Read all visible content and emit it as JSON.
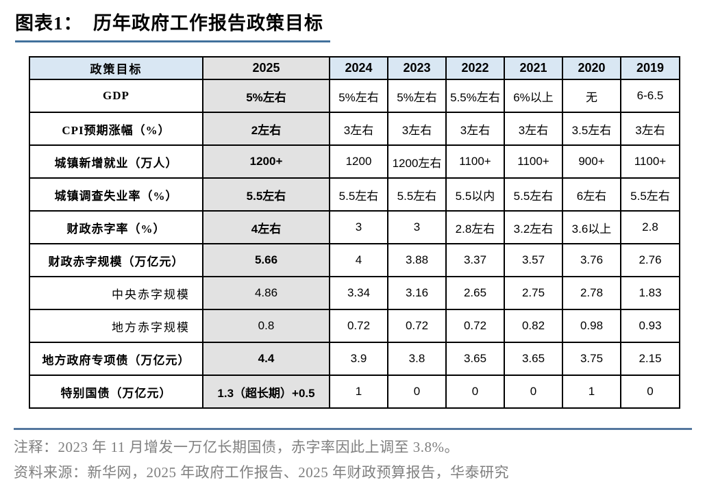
{
  "title": "图表1：  历年政府工作报告政策目标",
  "colors": {
    "header_bg": "#d9e7f3",
    "highlight_column_bg": "#e2e2e2",
    "table_border": "#000000",
    "title_rule": "#41719c",
    "footer_rule": "#54779e",
    "footer_text": "#7f7f7f"
  },
  "chart_data": {
    "type": "table",
    "title": "历年政府工作报告政策目标",
    "highlight_column": "2025",
    "columns": [
      "政策目标",
      "2025",
      "2024",
      "2023",
      "2022",
      "2021",
      "2020",
      "2019"
    ],
    "rows": [
      {
        "label": "GDP",
        "sub": false,
        "values": [
          "5%左右",
          "5%左右",
          "5%左右",
          "5.5%左右",
          "6%以上",
          "无",
          "6-6.5"
        ]
      },
      {
        "label": "CPI预期涨幅（%）",
        "sub": false,
        "values": [
          "2左右",
          "3左右",
          "3左右",
          "3左右",
          "3左右",
          "3.5左右",
          "3左右"
        ]
      },
      {
        "label": "城镇新增就业（万人）",
        "sub": false,
        "values": [
          "1200+",
          "1200",
          "1200左右",
          "1100+",
          "1100+",
          "900+",
          "1100+"
        ]
      },
      {
        "label": "城镇调查失业率（%）",
        "sub": false,
        "values": [
          "5.5左右",
          "5.5左右",
          "5.5左右",
          "5.5以内",
          "5.5左右",
          "6左右",
          "5.5左右"
        ]
      },
      {
        "label": "财政赤字率（%）",
        "sub": false,
        "values": [
          "4左右",
          "3",
          "3",
          "2.8左右",
          "3.2左右",
          "3.6以上",
          "2.8"
        ]
      },
      {
        "label": "财政赤字规模（万亿元）",
        "sub": false,
        "values": [
          "5.66",
          "4",
          "3.88",
          "3.37",
          "3.57",
          "3.76",
          "2.76"
        ]
      },
      {
        "label": "中央赤字规模",
        "sub": true,
        "values": [
          "4.86",
          "3.34",
          "3.16",
          "2.65",
          "2.75",
          "2.78",
          "1.83"
        ]
      },
      {
        "label": "地方赤字规模",
        "sub": true,
        "values": [
          "0.8",
          "0.72",
          "0.72",
          "0.72",
          "0.82",
          "0.98",
          "0.93"
        ]
      },
      {
        "label": "地方政府专项债（万亿元）",
        "sub": false,
        "values": [
          "4.4",
          "3.9",
          "3.8",
          "3.65",
          "3.65",
          "3.75",
          "2.15"
        ]
      },
      {
        "label": "特别国债（万亿元）",
        "sub": false,
        "values": [
          "1.3（超长期）+0.5",
          "1",
          "0",
          "0",
          "0",
          "1",
          "0"
        ]
      }
    ]
  },
  "footer": {
    "note": "注释：2023 年 11 月增发一万亿长期国债，赤字率因此上调至 3.8%。",
    "source": "资料来源：新华网，2025 年政府工作报告、2025 年财政预算报告，华泰研究"
  }
}
